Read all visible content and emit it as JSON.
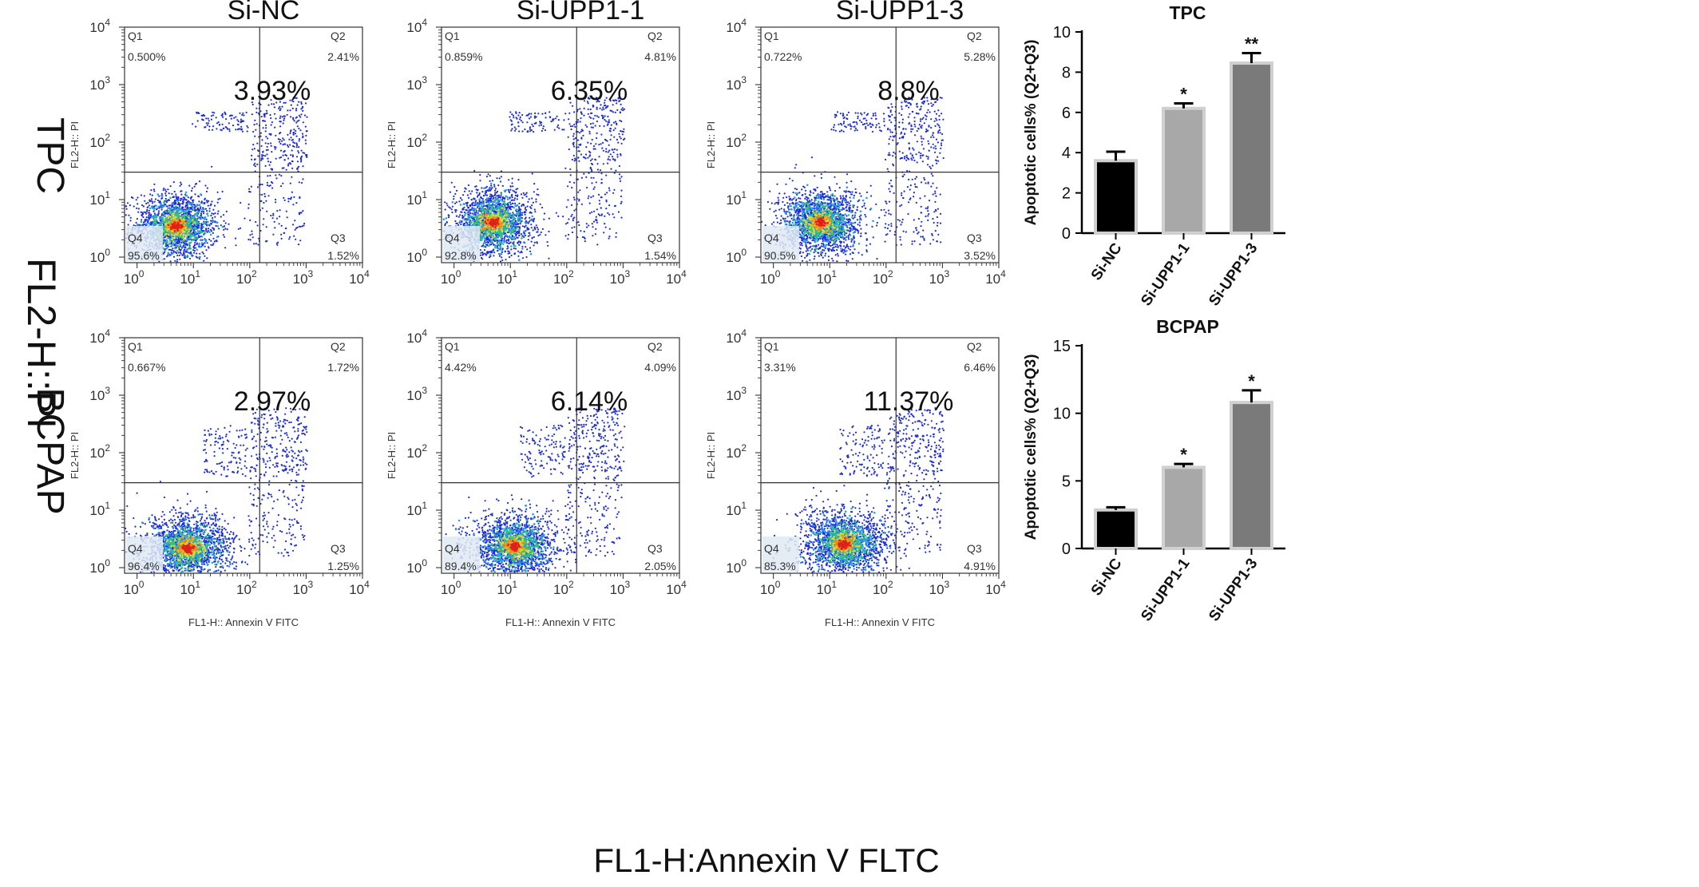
{
  "figure": {
    "global_ylabel": "FL2-H::PI",
    "global_xlabel": "FL1-H:Annexin V FLTC"
  },
  "chart_data": [
    {
      "type": "scatter",
      "panel": "TPC / Si-NC",
      "row_label": "TPC",
      "column_title": "Si-NC",
      "xlabel": "FL1-H:: Annexin V FITC",
      "ylabel": "FL2-H:: PI",
      "xscale": "log",
      "yscale": "log",
      "xlim": [
        0.6,
        10000
      ],
      "ylim": [
        0.8,
        10000
      ],
      "x_ticks": [
        "10",
        "10",
        "10",
        "10",
        "10"
      ],
      "x_tick_exponents": [
        "0",
        "1",
        "2",
        "3",
        "4"
      ],
      "y_ticks": [
        "10",
        "10",
        "10",
        "10",
        "10"
      ],
      "y_tick_exponents": [
        "0",
        "1",
        "2",
        "3",
        "4"
      ],
      "gate_x": 150,
      "gate_y": 30,
      "quadrants": {
        "Q1": "0.500%",
        "Q2": "2.41%",
        "Q3": "1.52%",
        "Q4": "95.6%"
      },
      "quadrant_names": {
        "q1": "Q1",
        "q2": "Q2",
        "q3": "Q3",
        "q4": "Q4"
      },
      "apoptosis_total": "3.93%",
      "density_center": [
        5,
        3.5
      ],
      "density_width": [
        2.4,
        2.3
      ],
      "population": "tpc"
    },
    {
      "type": "scatter",
      "panel": "TPC / Si-UPP1-1",
      "row_label": "TPC",
      "column_title": "Si-UPP1-1",
      "xlabel": "FL1-H:: Annexin V FITC",
      "ylabel": "FL2-H:: PI",
      "xscale": "log",
      "yscale": "log",
      "xlim": [
        0.6,
        10000
      ],
      "ylim": [
        0.8,
        10000
      ],
      "x_ticks": [
        "10",
        "10",
        "10",
        "10",
        "10"
      ],
      "x_tick_exponents": [
        "0",
        "1",
        "2",
        "3",
        "4"
      ],
      "y_ticks": [
        "10",
        "10",
        "10",
        "10",
        "10"
      ],
      "y_tick_exponents": [
        "0",
        "1",
        "2",
        "3",
        "4"
      ],
      "gate_x": 150,
      "gate_y": 30,
      "quadrants": {
        "Q1": "0.859%",
        "Q2": "4.81%",
        "Q3": "1.54%",
        "Q4": "92.8%"
      },
      "quadrant_names": {
        "q1": "Q1",
        "q2": "Q2",
        "q3": "Q3",
        "q4": "Q4"
      },
      "apoptosis_total": "6.35%",
      "density_center": [
        5,
        4
      ],
      "density_width": [
        2.4,
        2.3
      ],
      "population": "tpc"
    },
    {
      "type": "scatter",
      "panel": "TPC / Si-UPP1-3",
      "row_label": "TPC",
      "column_title": "Si-UPP1-3",
      "xlabel": "FL1-H:: Annexin V FITC",
      "ylabel": "FL2-H:: PI",
      "xscale": "log",
      "yscale": "log",
      "xlim": [
        0.6,
        10000
      ],
      "ylim": [
        0.8,
        10000
      ],
      "x_ticks": [
        "10",
        "10",
        "10",
        "10",
        "10"
      ],
      "x_tick_exponents": [
        "0",
        "1",
        "2",
        "3",
        "4"
      ],
      "y_ticks": [
        "10",
        "10",
        "10",
        "10",
        "10"
      ],
      "y_tick_exponents": [
        "0",
        "1",
        "2",
        "3",
        "4"
      ],
      "gate_x": 150,
      "gate_y": 30,
      "quadrants": {
        "Q1": "0.722%",
        "Q2": "5.28%",
        "Q3": "3.52%",
        "Q4": "90.5%"
      },
      "quadrant_names": {
        "q1": "Q1",
        "q2": "Q2",
        "q3": "Q3",
        "q4": "Q4"
      },
      "apoptosis_total": "8.8%",
      "density_center": [
        7,
        4
      ],
      "density_width": [
        2.5,
        2.3
      ],
      "population": "tpc"
    },
    {
      "type": "scatter",
      "panel": "BCPAP / Si-NC",
      "row_label": "BCPAP",
      "xlabel": "FL1-H:: Annexin V FITC",
      "ylabel": "FL2-H:: PI",
      "xscale": "log",
      "yscale": "log",
      "xlim": [
        0.6,
        10000
      ],
      "ylim": [
        0.8,
        10000
      ],
      "x_ticks": [
        "10",
        "10",
        "10",
        "10",
        "10"
      ],
      "x_tick_exponents": [
        "0",
        "1",
        "2",
        "3",
        "4"
      ],
      "y_ticks": [
        "10",
        "10",
        "10",
        "10",
        "10"
      ],
      "y_tick_exponents": [
        "0",
        "1",
        "2",
        "3",
        "4"
      ],
      "gate_x": 150,
      "gate_y": 30,
      "quadrants": {
        "Q1": "0.667%",
        "Q2": "1.72%",
        "Q3": "1.25%",
        "Q4": "96.4%"
      },
      "quadrant_names": {
        "q1": "Q1",
        "q2": "Q2",
        "q3": "Q3",
        "q4": "Q4"
      },
      "apoptosis_total": "2.97%",
      "density_center": [
        8,
        2.2
      ],
      "density_width": [
        2.6,
        1.8
      ],
      "population": "bcpap"
    },
    {
      "type": "scatter",
      "panel": "BCPAP / Si-UPP1-1",
      "row_label": "BCPAP",
      "xlabel": "FL1-H:: Annexin V FITC",
      "ylabel": "FL2-H:: PI",
      "xscale": "log",
      "yscale": "log",
      "xlim": [
        0.6,
        10000
      ],
      "ylim": [
        0.8,
        10000
      ],
      "x_ticks": [
        "10",
        "10",
        "10",
        "10",
        "10"
      ],
      "x_tick_exponents": [
        "0",
        "1",
        "2",
        "3",
        "4"
      ],
      "y_ticks": [
        "10",
        "10",
        "10",
        "10",
        "10"
      ],
      "y_tick_exponents": [
        "0",
        "1",
        "2",
        "3",
        "4"
      ],
      "gate_x": 150,
      "gate_y": 30,
      "quadrants": {
        "Q1": "4.42%",
        "Q2": "4.09%",
        "Q3": "2.05%",
        "Q4": "89.4%"
      },
      "quadrant_names": {
        "q1": "Q1",
        "q2": "Q2",
        "q3": "Q3",
        "q4": "Q4"
      },
      "apoptosis_total": "6.14%",
      "density_center": [
        12,
        2.3
      ],
      "density_width": [
        2.8,
        1.9
      ],
      "population": "bcpap"
    },
    {
      "type": "scatter",
      "panel": "BCPAP / Si-UPP1-3",
      "row_label": "BCPAP",
      "xlabel": "FL1-H:: Annexin V FITC",
      "ylabel": "FL2-H:: PI",
      "xscale": "log",
      "yscale": "log",
      "xlim": [
        0.6,
        10000
      ],
      "ylim": [
        0.8,
        10000
      ],
      "x_ticks": [
        "10",
        "10",
        "10",
        "10",
        "10"
      ],
      "x_tick_exponents": [
        "0",
        "1",
        "2",
        "3",
        "4"
      ],
      "y_ticks": [
        "10",
        "10",
        "10",
        "10",
        "10"
      ],
      "y_tick_exponents": [
        "0",
        "1",
        "2",
        "3",
        "4"
      ],
      "gate_x": 150,
      "gate_y": 30,
      "quadrants": {
        "Q1": "3.31%",
        "Q2": "6.46%",
        "Q3": "4.91%",
        "Q4": "85.3%"
      },
      "quadrant_names": {
        "q1": "Q1",
        "q2": "Q2",
        "q3": "Q3",
        "q4": "Q4"
      },
      "apoptosis_total": "11.37%",
      "density_center": [
        18,
        2.6
      ],
      "density_width": [
        2.8,
        2.0
      ],
      "population": "bcpap"
    },
    {
      "type": "bar",
      "title": "TPC",
      "categories": [
        "Si-NC",
        "Si-UPP1-1",
        "Si-UPP1-3"
      ],
      "values": [
        3.6,
        6.2,
        8.45
      ],
      "errors": [
        0.45,
        0.25,
        0.5
      ],
      "significance": [
        "",
        "*",
        "**"
      ],
      "ylabel": "Apoptotic cells% (Q2+Q3)",
      "ylim": [
        0,
        10
      ],
      "yticks": [
        0,
        2,
        4,
        6,
        8,
        10
      ],
      "colors": [
        "#000000",
        "#a8a8a8",
        "#7a7a7a"
      ]
    },
    {
      "type": "bar",
      "title": "BCPAP",
      "categories": [
        "Si-NC",
        "Si-UPP1-1",
        "Si-UPP1-3"
      ],
      "values": [
        2.85,
        6.0,
        10.8
      ],
      "errors": [
        0.2,
        0.25,
        0.9
      ],
      "significance": [
        "",
        "*",
        "*"
      ],
      "ylabel": "Apoptotic cells% (Q2+Q3)",
      "ylim": [
        0,
        15
      ],
      "yticks": [
        0,
        5,
        10,
        15
      ],
      "colors": [
        "#000000",
        "#a8a8a8",
        "#7a7a7a"
      ]
    }
  ]
}
